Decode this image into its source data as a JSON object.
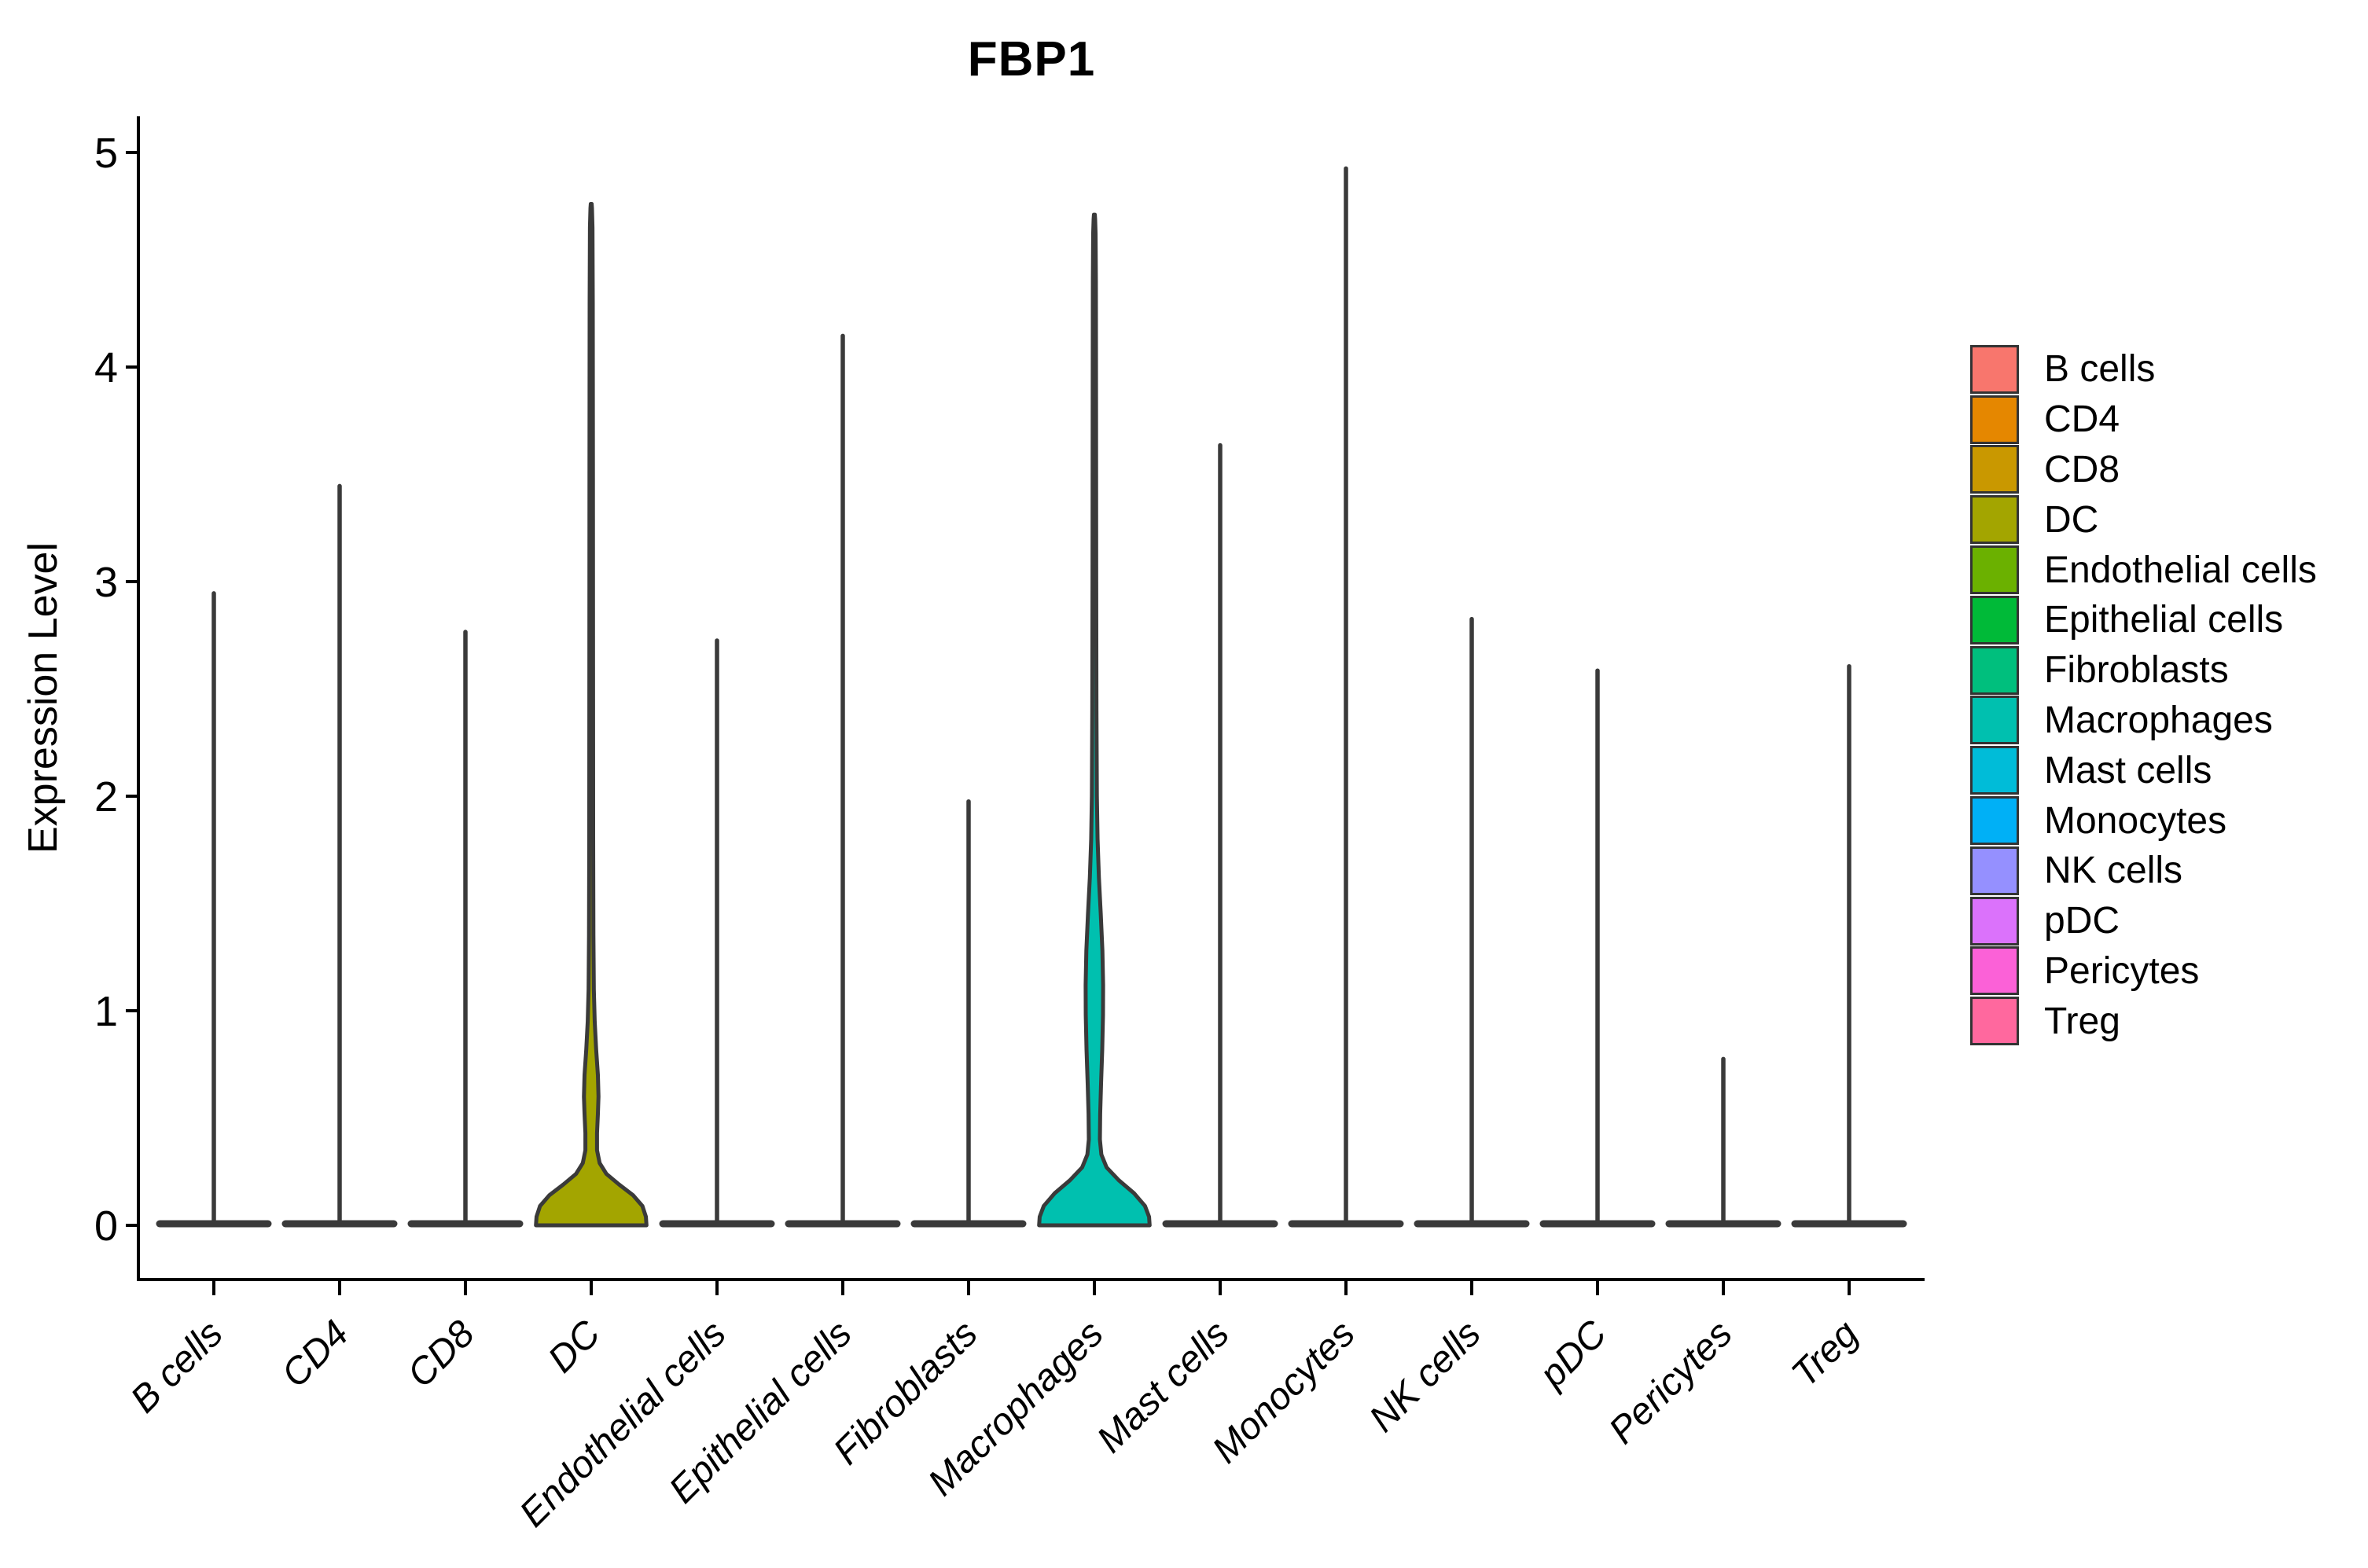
{
  "title": "FBP1",
  "y_axis": {
    "label": "Expression Level",
    "ticks": [
      "0",
      "1",
      "2",
      "3",
      "4",
      "5"
    ]
  },
  "x_axis": {
    "labels": [
      "B cells",
      "CD4",
      "CD8",
      "DC",
      "Endothelial cells",
      "Epithelial cells",
      "Fibroblasts",
      "Macrophages",
      "Mast cells",
      "Monocytes",
      "NK cells",
      "pDC",
      "Pericytes",
      "Treg"
    ]
  },
  "legend": {
    "items": [
      {
        "label": "B cells",
        "color": "#F8766D"
      },
      {
        "label": "CD4",
        "color": "#E58700"
      },
      {
        "label": "CD8",
        "color": "#C99800"
      },
      {
        "label": "DC",
        "color": "#A3A500"
      },
      {
        "label": "Endothelial cells",
        "color": "#6BB100"
      },
      {
        "label": "Epithelial cells",
        "color": "#00BA38"
      },
      {
        "label": "Fibroblasts",
        "color": "#00BF7D"
      },
      {
        "label": "Macrophages",
        "color": "#00C0AF"
      },
      {
        "label": "Mast cells",
        "color": "#00BCD8"
      },
      {
        "label": "Monocytes",
        "color": "#00B0F6"
      },
      {
        "label": "NK cells",
        "color": "#9590FF"
      },
      {
        "label": "pDC",
        "color": "#DB72FB"
      },
      {
        "label": "Pericytes",
        "color": "#FB61D7"
      },
      {
        "label": "Treg",
        "color": "#FF689E"
      }
    ]
  },
  "chart_data": {
    "type": "violin",
    "title": "FBP1",
    "xlabel": "",
    "ylabel": "Expression Level",
    "yticks": [
      0,
      1,
      2,
      3,
      4,
      5
    ],
    "ylim": [
      -0.25,
      5.17
    ],
    "grid": false,
    "legend_position": "right",
    "categories": [
      "B cells",
      "CD4",
      "CD8",
      "DC",
      "Endothelial cells",
      "Epithelial cells",
      "Fibroblasts",
      "Macrophages",
      "Mast cells",
      "Monocytes",
      "NK cells",
      "pDC",
      "Pericytes",
      "Treg"
    ],
    "colors": [
      "#F8766D",
      "#E58700",
      "#C99800",
      "#A3A500",
      "#6BB100",
      "#00BA38",
      "#00BF7D",
      "#00C0AF",
      "#00BCD8",
      "#00B0F6",
      "#9590FF",
      "#DB72FB",
      "#FB61D7",
      "#FF689E"
    ],
    "series": [
      {
        "name": "B cells",
        "max_expression": 2.96,
        "shape": "spike"
      },
      {
        "name": "CD4",
        "max_expression": 3.46,
        "shape": "spike"
      },
      {
        "name": "CD8",
        "max_expression": 2.78,
        "shape": "spike"
      },
      {
        "name": "DC",
        "max_expression": 4.76,
        "shape": "violin"
      },
      {
        "name": "Endothelial cells",
        "max_expression": 2.74,
        "shape": "spike"
      },
      {
        "name": "Epithelial cells",
        "max_expression": 4.16,
        "shape": "spike"
      },
      {
        "name": "Fibroblasts",
        "max_expression": 1.99,
        "shape": "spike"
      },
      {
        "name": "Macrophages",
        "max_expression": 4.71,
        "shape": "violin"
      },
      {
        "name": "Mast cells",
        "max_expression": 3.65,
        "shape": "spike"
      },
      {
        "name": "Monocytes",
        "max_expression": 4.94,
        "shape": "spike"
      },
      {
        "name": "NK cells",
        "max_expression": 2.84,
        "shape": "spike"
      },
      {
        "name": "pDC",
        "max_expression": 2.6,
        "shape": "spike"
      },
      {
        "name": "Pericytes",
        "max_expression": 0.79,
        "shape": "spike"
      },
      {
        "name": "Treg",
        "max_expression": 2.62,
        "shape": "spike"
      }
    ],
    "violin_width_profiles": {
      "DC": [
        [
          0,
          0.95
        ],
        [
          0.04,
          0.94
        ],
        [
          0.09,
          0.88
        ],
        [
          0.14,
          0.72
        ],
        [
          0.19,
          0.48
        ],
        [
          0.24,
          0.26
        ],
        [
          0.29,
          0.145
        ],
        [
          0.35,
          0.1
        ],
        [
          0.43,
          0.1
        ],
        [
          0.52,
          0.115
        ],
        [
          0.6,
          0.125
        ],
        [
          0.7,
          0.115
        ],
        [
          0.82,
          0.085
        ],
        [
          0.95,
          0.06
        ],
        [
          1.1,
          0.045
        ],
        [
          1.35,
          0.038
        ],
        [
          1.8,
          0.034
        ],
        [
          2.6,
          0.032
        ],
        [
          3.5,
          0.03
        ],
        [
          4.3,
          0.027
        ],
        [
          4.65,
          0.022
        ],
        [
          4.74,
          0.013
        ],
        [
          4.76,
          0.008
        ]
      ],
      "Macrophages": [
        [
          0,
          0.95
        ],
        [
          0.04,
          0.94
        ],
        [
          0.09,
          0.87
        ],
        [
          0.15,
          0.68
        ],
        [
          0.21,
          0.42
        ],
        [
          0.27,
          0.21
        ],
        [
          0.33,
          0.12
        ],
        [
          0.4,
          0.095
        ],
        [
          0.52,
          0.1
        ],
        [
          0.66,
          0.115
        ],
        [
          0.82,
          0.135
        ],
        [
          0.98,
          0.148
        ],
        [
          1.12,
          0.15
        ],
        [
          1.28,
          0.138
        ],
        [
          1.45,
          0.11
        ],
        [
          1.62,
          0.078
        ],
        [
          1.8,
          0.055
        ],
        [
          2.0,
          0.043
        ],
        [
          2.4,
          0.036
        ],
        [
          3.0,
          0.032
        ],
        [
          3.8,
          0.029
        ],
        [
          4.4,
          0.026
        ],
        [
          4.62,
          0.021
        ],
        [
          4.69,
          0.013
        ],
        [
          4.71,
          0.008
        ]
      ]
    }
  }
}
